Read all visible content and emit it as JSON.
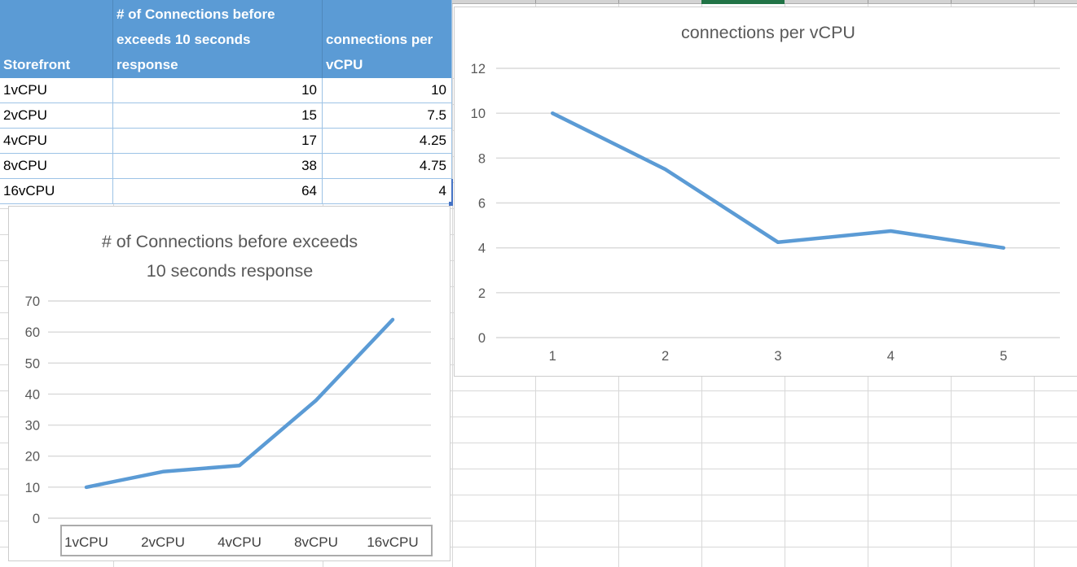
{
  "sheet": {
    "gridline_color": "#d8d8d8",
    "strip": {
      "bg": "#d3d3d3",
      "selected_color": "#217346"
    }
  },
  "table": {
    "header_bg": "#5B9BD5",
    "border_color": "#9DC3E6",
    "header": {
      "storefront": "Storefront",
      "connections_lines": [
        "# of Connections before",
        "exceeds 10 seconds",
        "response"
      ],
      "per_vcpu_lines": [
        "connections per",
        "vCPU"
      ]
    },
    "rows": [
      {
        "storefront": "1vCPU",
        "connections": "10",
        "per_vcpu": "10"
      },
      {
        "storefront": "2vCPU",
        "connections": "15",
        "per_vcpu": "7.5"
      },
      {
        "storefront": "4vCPU",
        "connections": "17",
        "per_vcpu": "4.25"
      },
      {
        "storefront": "8vCPU",
        "connections": "38",
        "per_vcpu": "4.75"
      },
      {
        "storefront": "16vCPU",
        "connections": "64",
        "per_vcpu": "4"
      }
    ]
  },
  "chart_data": [
    {
      "id": "connections-chart",
      "type": "line",
      "title": "# of Connections before exceeds 10 seconds response",
      "title_lines": [
        "# of Connections before exceeds",
        "10 seconds response"
      ],
      "categories": [
        "1vCPU",
        "2vCPU",
        "4vCPU",
        "8vCPU",
        "16vCPU"
      ],
      "values": [
        10,
        15,
        17,
        38,
        64
      ],
      "xlabel": "",
      "ylabel": "",
      "ylim": [
        0,
        70
      ],
      "ytick_step": 10,
      "grid": true,
      "legend": "none",
      "line_color": "#5B9BD5",
      "boxed_x_labels": true
    },
    {
      "id": "per-vcpu-chart",
      "type": "line",
      "title": "connections per vCPU",
      "title_lines": [
        "connections per vCPU"
      ],
      "categories": [
        "1",
        "2",
        "3",
        "4",
        "5"
      ],
      "values": [
        10,
        7.5,
        4.25,
        4.75,
        4
      ],
      "xlabel": "",
      "ylabel": "",
      "ylim": [
        0,
        12
      ],
      "ytick_step": 2,
      "grid": true,
      "legend": "none",
      "line_color": "#5B9BD5",
      "boxed_x_labels": false
    }
  ],
  "colors": {
    "accent": "#5B9BD5",
    "chart_text": "#595959",
    "chart_gridline": "#D9D9D9",
    "axis_box_border": "#ABABAB",
    "selection_blue": "#4472C4"
  }
}
